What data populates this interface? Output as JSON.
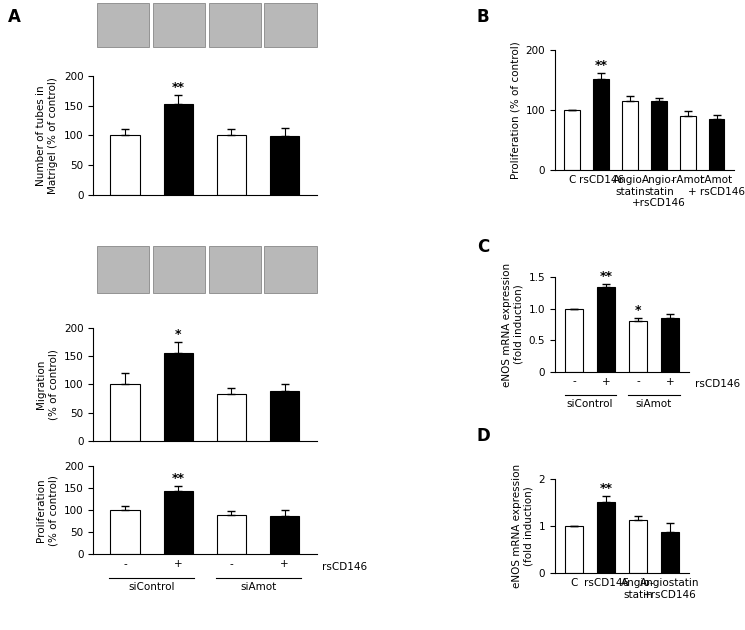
{
  "chart_data": [
    {
      "type": "bar",
      "panel": "A",
      "ylabel": "Number of tubes in\nMatrigel (% of control)",
      "categories": [
        "-",
        "+",
        "-",
        "+"
      ],
      "values": [
        100,
        152,
        100,
        99
      ],
      "errors": [
        10,
        15,
        10,
        13
      ],
      "colors": [
        "#ffffff",
        "#000000",
        "#ffffff",
        "#000000"
      ],
      "significance": [
        null,
        "**",
        null,
        null
      ],
      "ylim": [
        0,
        200
      ],
      "yticks": [
        0,
        50,
        100,
        150,
        200
      ],
      "tick_labels": "y"
    },
    {
      "type": "bar",
      "ylabel": "Migration\n(% of control)",
      "categories": [
        "-",
        "+",
        "-",
        "+"
      ],
      "values": [
        100,
        155,
        83,
        88
      ],
      "errors": [
        20,
        20,
        10,
        12
      ],
      "colors": [
        "#ffffff",
        "#000000",
        "#ffffff",
        "#000000"
      ],
      "significance": [
        null,
        "*",
        null,
        null
      ],
      "ylim": [
        0,
        200
      ],
      "yticks": [
        0,
        50,
        100,
        150,
        200
      ],
      "tick_labels": "y"
    },
    {
      "type": "bar",
      "ylabel": "Proliferation\n(% of control)",
      "xlabel": "rsCD146",
      "categories": [
        "-",
        "+",
        "-",
        "+"
      ],
      "groups": [
        "siControl",
        "siAmot"
      ],
      "values": [
        100,
        143,
        90,
        88
      ],
      "errors": [
        10,
        12,
        8,
        12
      ],
      "colors": [
        "#ffffff",
        "#000000",
        "#ffffff",
        "#000000"
      ],
      "significance": [
        null,
        "**",
        null,
        null
      ],
      "ylim": [
        0,
        200
      ],
      "yticks": [
        0,
        50,
        100,
        150,
        200
      ]
    },
    {
      "type": "bar",
      "panel": "B",
      "ylabel": "Proliferation (% of control)",
      "categories": [
        "C",
        "rsCD146",
        "Angio-\nstatin",
        "Angio-\nstatin\n+rsCD146",
        "rAmot",
        "rAmot\n+ rsCD146"
      ],
      "values": [
        100,
        152,
        115,
        115,
        91,
        85
      ],
      "errors": [
        0,
        10,
        8,
        6,
        7,
        7
      ],
      "colors": [
        "#ffffff",
        "#000000",
        "#ffffff",
        "#000000",
        "#ffffff",
        "#000000"
      ],
      "significance": [
        null,
        "**",
        null,
        null,
        null,
        null
      ],
      "ylim": [
        0,
        200
      ],
      "yticks": [
        0,
        100,
        200
      ]
    },
    {
      "type": "bar",
      "panel": "C",
      "ylabel": "eNOS mRNA expression\n(fold induction)",
      "xlabel": "rsCD146",
      "categories": [
        "-",
        "+",
        "-",
        "+"
      ],
      "groups": [
        "siControl",
        "siAmot"
      ],
      "values": [
        1.0,
        1.35,
        0.8,
        0.86
      ],
      "errors": [
        0,
        0.05,
        0.06,
        0.06
      ],
      "colors": [
        "#ffffff",
        "#000000",
        "#ffffff",
        "#000000"
      ],
      "significance": [
        null,
        "**",
        "*",
        null
      ],
      "ylim": [
        0,
        1.5
      ],
      "yticks": [
        0,
        {
          "value": 0.5,
          "label": "0.5"
        },
        {
          "value": 1.0,
          "label": "1.0"
        },
        {
          "value": 1.5,
          "label": "1.5"
        }
      ]
    },
    {
      "type": "bar",
      "panel": "D",
      "ylabel": "eNOS mRNA expression\n(fold induction)",
      "categories": [
        "C",
        "rsCD146",
        "Angio-\nstatin",
        "Angiostatin\n+rsCD146"
      ],
      "values": [
        1.0,
        1.5,
        1.12,
        0.87
      ],
      "errors": [
        0,
        0.13,
        0.1,
        0.2
      ],
      "colors": [
        "#ffffff",
        "#000000",
        "#ffffff",
        "#000000"
      ],
      "significance": [
        null,
        "**",
        null,
        null
      ],
      "ylim": [
        0,
        2
      ],
      "yticks": [
        0,
        1,
        2
      ]
    }
  ]
}
